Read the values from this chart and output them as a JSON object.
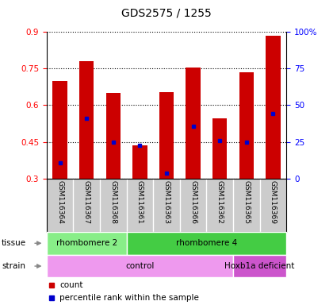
{
  "title": "GDS2575 / 1255",
  "samples": [
    "GSM116364",
    "GSM116367",
    "GSM116368",
    "GSM116361",
    "GSM116363",
    "GSM116366",
    "GSM116362",
    "GSM116365",
    "GSM116369"
  ],
  "bar_bottoms": [
    0.3,
    0.3,
    0.3,
    0.3,
    0.3,
    0.3,
    0.3,
    0.3,
    0.3
  ],
  "bar_tops": [
    0.7,
    0.78,
    0.65,
    0.435,
    0.655,
    0.755,
    0.545,
    0.735,
    0.885
  ],
  "blue_values": [
    0.365,
    0.545,
    0.45,
    0.435,
    0.32,
    0.515,
    0.455,
    0.45,
    0.565
  ],
  "ylim_left": [
    0.3,
    0.9
  ],
  "ylim_right": [
    0,
    100
  ],
  "yticks_left": [
    0.3,
    0.45,
    0.6,
    0.75,
    0.9
  ],
  "yticks_right": [
    0,
    25,
    50,
    75,
    100
  ],
  "yticklabels_right": [
    "0",
    "25",
    "50",
    "75",
    "100%"
  ],
  "bar_color": "#cc0000",
  "blue_color": "#0000cc",
  "tissue_groups": [
    {
      "label": "rhombomere 2",
      "start": 0,
      "end": 2,
      "color": "#88ee88"
    },
    {
      "label": "rhombomere 4",
      "start": 3,
      "end": 8,
      "color": "#44cc44"
    }
  ],
  "strain_groups": [
    {
      "label": "control",
      "start": 0,
      "end": 6,
      "color": "#ee99ee"
    },
    {
      "label": "Hoxb1a deficient",
      "start": 7,
      "end": 8,
      "color": "#cc55cc"
    }
  ],
  "tissue_label": "tissue",
  "strain_label": "strain",
  "legend_count": "count",
  "legend_percentile": "percentile rank within the sample",
  "bg_color": "#cccccc",
  "white_bg": "#ffffff"
}
